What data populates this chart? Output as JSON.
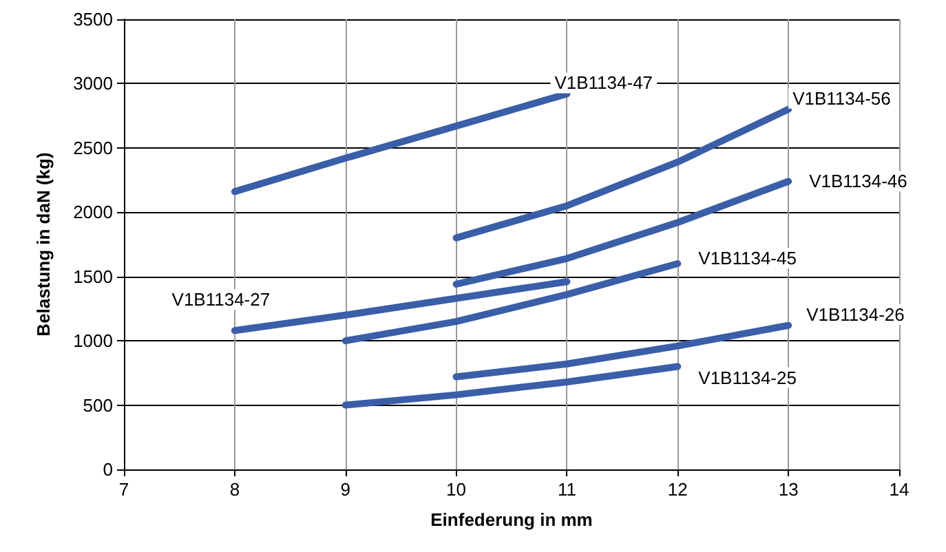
{
  "chart_data": {
    "type": "line",
    "xlabel": "Einfederung in mm",
    "ylabel": "Belastung in daN (kg)",
    "xlim": [
      7,
      14
    ],
    "xticks": [
      7,
      8,
      9,
      10,
      11,
      12,
      13,
      14
    ],
    "ylim": [
      0,
      3500
    ],
    "yticks": [
      0,
      500,
      1000,
      1500,
      2000,
      2500,
      3000,
      3500
    ],
    "grid": true,
    "marker": "none",
    "line_style": "solid",
    "series": [
      {
        "name": "V1B1134-47",
        "color": "#3a5ea8",
        "x": [
          8,
          9,
          10,
          11
        ],
        "values": [
          2160,
          2420,
          2670,
          2920
        ]
      },
      {
        "name": "V1B1134-56",
        "color": "#3a5ea8",
        "x": [
          10,
          11,
          12,
          13
        ],
        "values": [
          1800,
          2050,
          2390,
          2800
        ]
      },
      {
        "name": "V1B1134-46",
        "color": "#3a5ea8",
        "x": [
          10,
          11,
          12,
          13
        ],
        "values": [
          1440,
          1640,
          1920,
          2240
        ]
      },
      {
        "name": "V1B1134-27",
        "color": "#3a5ea8",
        "x": [
          8,
          9,
          10,
          11
        ],
        "values": [
          1080,
          1200,
          1330,
          1460
        ]
      },
      {
        "name": "V1B1134-45",
        "color": "#3a5ea8",
        "x": [
          9,
          10,
          11,
          12
        ],
        "values": [
          1000,
          1150,
          1360,
          1600
        ]
      },
      {
        "name": "V1B1134-26",
        "color": "#3a5ea8",
        "x": [
          10,
          11,
          12,
          13
        ],
        "values": [
          720,
          820,
          960,
          1120
        ]
      },
      {
        "name": "V1B1134-25",
        "color": "#3a5ea8",
        "x": [
          9,
          10,
          11,
          12
        ],
        "values": [
          500,
          580,
          680,
          800
        ]
      }
    ]
  }
}
